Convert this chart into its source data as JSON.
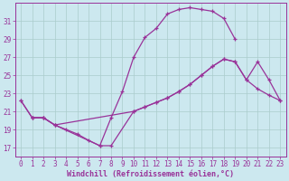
{
  "xlabel": "Windchill (Refroidissement éolien,°C)",
  "bg_color": "#cce8ef",
  "grid_color": "#aacccc",
  "line_color": "#993399",
  "xlim": [
    -0.5,
    23.5
  ],
  "ylim": [
    16.0,
    33.0
  ],
  "xticks": [
    0,
    1,
    2,
    3,
    4,
    5,
    6,
    7,
    8,
    9,
    10,
    11,
    12,
    13,
    14,
    15,
    16,
    17,
    18,
    19,
    20,
    21,
    22,
    23
  ],
  "yticks": [
    17,
    19,
    21,
    23,
    25,
    27,
    29,
    31
  ],
  "series": [
    {
      "x": [
        1,
        2,
        3,
        7,
        8,
        9,
        10,
        11,
        12,
        13,
        14,
        15,
        16,
        17,
        18,
        19
      ],
      "y": [
        20.3,
        20.3,
        19.5,
        17.2,
        20.3,
        23.2,
        27.0,
        29.2,
        30.2,
        31.8,
        32.3,
        32.5,
        32.3,
        32.1,
        31.3,
        29.0
      ]
    },
    {
      "x": [
        0,
        1,
        2,
        3,
        10,
        11,
        12,
        13,
        14,
        15,
        16,
        17,
        18,
        19,
        20,
        21,
        22,
        23
      ],
      "y": [
        22.2,
        20.3,
        20.3,
        19.5,
        21.0,
        21.5,
        22.0,
        22.5,
        23.2,
        24.0,
        25.0,
        26.0,
        26.8,
        26.5,
        24.5,
        26.5,
        24.5,
        22.2
      ]
    },
    {
      "x": [
        0,
        1,
        2,
        3,
        4,
        5,
        6,
        7,
        8,
        10,
        11,
        12,
        13,
        14,
        15,
        16,
        17,
        18,
        19,
        20,
        21,
        22,
        23
      ],
      "y": [
        22.2,
        20.3,
        20.3,
        19.5,
        19.0,
        18.5,
        17.8,
        17.2,
        17.2,
        21.0,
        21.5,
        22.0,
        22.5,
        23.2,
        24.0,
        25.0,
        26.0,
        26.8,
        26.5,
        24.5,
        23.5,
        22.8,
        22.2
      ]
    }
  ]
}
